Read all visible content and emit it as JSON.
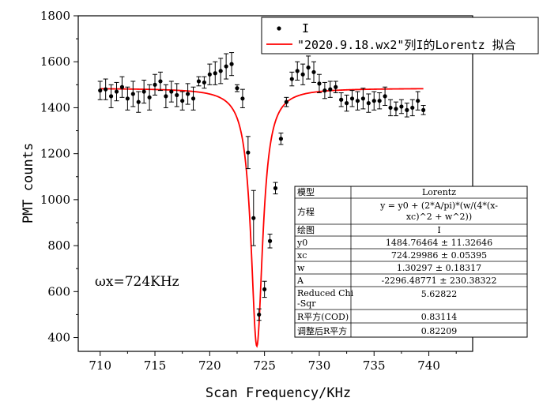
{
  "chart_data": {
    "type": "scatter",
    "xlabel": "Scan Frequency/KHz",
    "ylabel": "PMT counts",
    "xlim": [
      708,
      744
    ],
    "ylim": [
      340,
      1800
    ],
    "xticks": [
      710,
      715,
      720,
      725,
      730,
      735,
      740
    ],
    "yticks": [
      400,
      600,
      800,
      1000,
      1200,
      1400,
      1600,
      1800
    ],
    "grid": false,
    "legend_position": "top-right",
    "annotation": "ωx=724KHz",
    "series": [
      {
        "name": "I",
        "kind": "scatter_with_error",
        "color": "#000000",
        "x": [
          710.0,
          710.5,
          711.0,
          711.5,
          712.0,
          712.5,
          713.0,
          713.5,
          714.0,
          714.5,
          715.0,
          715.5,
          716.0,
          716.5,
          717.0,
          717.5,
          718.0,
          718.5,
          719.0,
          719.5,
          720.0,
          720.5,
          721.0,
          721.5,
          722.0,
          722.5,
          723.0,
          723.5,
          724.0,
          724.5,
          725.0,
          725.5,
          726.0,
          726.5,
          727.0,
          727.5,
          728.0,
          728.5,
          729.0,
          729.5,
          730.0,
          730.5,
          731.0,
          731.5,
          732.0,
          732.5,
          733.0,
          733.5,
          734.0,
          734.5,
          735.0,
          735.5,
          736.0,
          736.5,
          737.0,
          737.5,
          738.0,
          738.5,
          739.0,
          739.5
        ],
        "y": [
          1475,
          1480,
          1450,
          1470,
          1490,
          1440,
          1460,
          1425,
          1470,
          1445,
          1500,
          1515,
          1450,
          1470,
          1455,
          1430,
          1460,
          1440,
          1515,
          1510,
          1545,
          1550,
          1560,
          1580,
          1590,
          1485,
          1440,
          1205,
          920,
          500,
          610,
          820,
          1050,
          1265,
          1425,
          1525,
          1560,
          1545,
          1575,
          1555,
          1505,
          1475,
          1480,
          1490,
          1435,
          1420,
          1440,
          1430,
          1440,
          1420,
          1430,
          1430,
          1450,
          1400,
          1395,
          1405,
          1390,
          1400,
          1430,
          1390
        ],
        "err": [
          40,
          45,
          50,
          40,
          45,
          50,
          55,
          45,
          50,
          55,
          45,
          40,
          50,
          45,
          50,
          40,
          45,
          50,
          20,
          25,
          45,
          50,
          55,
          55,
          50,
          15,
          40,
          70,
          120,
          25,
          35,
          30,
          25,
          25,
          20,
          30,
          40,
          45,
          50,
          45,
          40,
          35,
          35,
          25,
          30,
          35,
          35,
          40,
          45,
          40,
          40,
          35,
          40,
          35,
          30,
          30,
          30,
          35,
          40,
          20
        ]
      },
      {
        "name": "\"2020.9.18.wx2\"列I的Lorentz 拟合",
        "kind": "line",
        "color": "#ff0000",
        "model": "lorentz",
        "x_range": [
          710.0,
          739.5
        ],
        "params": {
          "y0": 1484.76464,
          "xc": 724.29986,
          "w": 1.30297,
          "A": -2296.48771
        }
      }
    ]
  },
  "results_table": {
    "rows": [
      {
        "label": "模型",
        "value": "Lorentz"
      },
      {
        "label": "方程",
        "value": "y = y0 + (2*A/pi)*(w/(4*(x-xc)^2 + w^2))"
      },
      {
        "label": "绘图",
        "value": "I"
      },
      {
        "label": "y0",
        "value": "1484.76464 ± 11.32646"
      },
      {
        "label": "xc",
        "value": "724.29986 ± 0.05395"
      },
      {
        "label": "w",
        "value": "1.30297 ± 0.18317"
      },
      {
        "label": "A",
        "value": "-2296.48771 ± 230.38322"
      },
      {
        "label": "Reduced Chi-Sqr",
        "value": "5.62822"
      },
      {
        "label": "R平方(COD)",
        "value": "0.83114"
      },
      {
        "label": "调整后R平方",
        "value": "0.82209"
      }
    ]
  }
}
